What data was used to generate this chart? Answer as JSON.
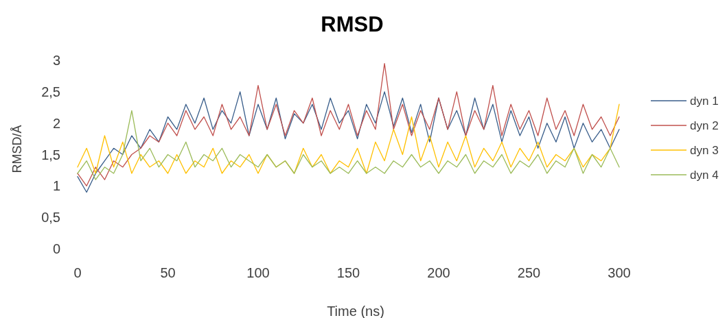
{
  "chart_data": {
    "type": "line",
    "title": "RMSD",
    "xlabel": "Time (ns)",
    "ylabel": "RMSD/Å",
    "x": [
      0,
      5,
      10,
      15,
      20,
      25,
      30,
      35,
      40,
      45,
      50,
      55,
      60,
      65,
      70,
      75,
      80,
      85,
      90,
      95,
      100,
      105,
      110,
      115,
      120,
      125,
      130,
      135,
      140,
      145,
      150,
      155,
      160,
      165,
      170,
      175,
      180,
      185,
      190,
      195,
      200,
      205,
      210,
      215,
      220,
      225,
      230,
      235,
      240,
      245,
      250,
      255,
      260,
      265,
      270,
      275,
      280,
      285,
      290,
      295,
      300
    ],
    "series": [
      {
        "name": "dyn 1",
        "color": "#385d8a",
        "values": [
          1.15,
          0.9,
          1.2,
          1.4,
          1.6,
          1.5,
          1.8,
          1.6,
          1.9,
          1.7,
          2.1,
          1.9,
          2.3,
          2.0,
          2.4,
          1.9,
          2.2,
          2.0,
          2.5,
          1.8,
          2.3,
          1.9,
          2.4,
          1.75,
          2.15,
          2.0,
          2.3,
          1.9,
          2.4,
          2.0,
          2.2,
          1.75,
          2.3,
          2.0,
          2.5,
          1.95,
          2.4,
          1.85,
          2.3,
          1.7,
          2.4,
          1.9,
          2.2,
          1.8,
          2.4,
          1.9,
          2.3,
          1.7,
          2.2,
          1.8,
          2.1,
          1.6,
          2.0,
          1.7,
          2.1,
          1.6,
          2.0,
          1.7,
          1.9,
          1.6,
          1.9
        ]
      },
      {
        "name": "dyn 2",
        "color": "#c0504d",
        "values": [
          1.2,
          1.0,
          1.3,
          1.1,
          1.4,
          1.3,
          1.5,
          1.6,
          1.8,
          1.7,
          2.0,
          1.8,
          2.2,
          1.9,
          2.1,
          1.8,
          2.3,
          1.9,
          2.1,
          1.8,
          2.6,
          1.9,
          2.3,
          1.8,
          2.2,
          2.0,
          2.4,
          1.8,
          2.2,
          1.9,
          2.3,
          1.8,
          2.2,
          1.9,
          2.95,
          1.9,
          2.3,
          1.8,
          2.2,
          1.9,
          2.4,
          1.9,
          2.5,
          1.8,
          2.2,
          1.9,
          2.6,
          1.8,
          2.3,
          1.9,
          2.2,
          1.8,
          2.4,
          1.9,
          2.2,
          1.8,
          2.3,
          1.9,
          2.1,
          1.8,
          2.1
        ]
      },
      {
        "name": "dyn 3",
        "color": "#ffc000",
        "values": [
          1.3,
          1.6,
          1.2,
          1.8,
          1.3,
          1.7,
          1.2,
          1.5,
          1.3,
          1.4,
          1.2,
          1.5,
          1.2,
          1.4,
          1.3,
          1.6,
          1.2,
          1.4,
          1.3,
          1.5,
          1.2,
          1.5,
          1.3,
          1.4,
          1.2,
          1.6,
          1.3,
          1.5,
          1.2,
          1.4,
          1.3,
          1.6,
          1.2,
          1.7,
          1.4,
          1.9,
          1.5,
          2.1,
          1.4,
          1.8,
          1.3,
          1.7,
          1.4,
          1.8,
          1.3,
          1.6,
          1.4,
          1.7,
          1.3,
          1.6,
          1.4,
          1.7,
          1.3,
          1.5,
          1.4,
          1.6,
          1.3,
          1.5,
          1.4,
          1.6,
          2.3
        ]
      },
      {
        "name": "dyn 4",
        "color": "#9bbb59",
        "values": [
          1.2,
          1.4,
          1.1,
          1.3,
          1.2,
          1.5,
          2.2,
          1.4,
          1.6,
          1.3,
          1.5,
          1.4,
          1.7,
          1.3,
          1.5,
          1.4,
          1.6,
          1.3,
          1.5,
          1.4,
          1.3,
          1.5,
          1.3,
          1.4,
          1.2,
          1.5,
          1.3,
          1.4,
          1.2,
          1.3,
          1.2,
          1.4,
          1.2,
          1.3,
          1.2,
          1.4,
          1.3,
          1.5,
          1.3,
          1.4,
          1.2,
          1.4,
          1.3,
          1.5,
          1.2,
          1.4,
          1.3,
          1.5,
          1.2,
          1.4,
          1.3,
          1.5,
          1.2,
          1.4,
          1.3,
          1.6,
          1.2,
          1.5,
          1.3,
          1.6,
          1.3
        ]
      }
    ],
    "xlim": [
      0,
      300
    ],
    "xticks": [
      0,
      50,
      100,
      150,
      200,
      250,
      300
    ],
    "ylim": [
      0,
      3
    ],
    "yticks": [
      0,
      {
        "value": 0.5,
        "label": "0,5"
      },
      1,
      {
        "value": 1.5,
        "label": "1,5"
      },
      2,
      {
        "value": 2.5,
        "label": "2,5"
      },
      3
    ],
    "grid": false,
    "legend": "right",
    "marker": "none",
    "line_style": "solid"
  }
}
